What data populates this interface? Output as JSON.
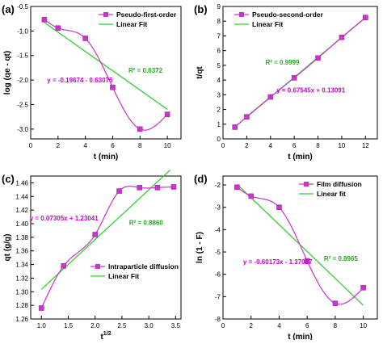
{
  "style": {
    "data_color": "#cc33cc",
    "fit_color": "#33cc33",
    "eq_color": "#cc00cc",
    "r2_color": "#22aa22",
    "axis_color": "#000000"
  },
  "chart_data": [
    {
      "panel_label": "(a)",
      "type": "line",
      "xlabel": "t (min)",
      "ylabel": "log (qe - qt)",
      "xlim": [
        0,
        11
      ],
      "ylim": [
        -3.2,
        -0.5
      ],
      "x_ticks": [
        0,
        2,
        4,
        6,
        8,
        10
      ],
      "y_ticks": [
        -3.0,
        -2.5,
        -2.0,
        -1.5,
        -1.0,
        -0.5
      ],
      "y_tick_labels": [
        "-3.0",
        "-2.5",
        "-2.0",
        "-1.5",
        "-1.0",
        "-0.5"
      ],
      "legend_position": "top-right",
      "series": [
        {
          "name": "Pseudo-first-order",
          "x": [
            1,
            2,
            4,
            6,
            8,
            10
          ],
          "y": [
            -0.77,
            -0.94,
            -1.15,
            -2.15,
            -3.0,
            -2.7
          ]
        },
        {
          "name": "Linear Fit",
          "x": [
            1,
            10
          ],
          "y": [
            -0.8275,
            -2.5981
          ]
        }
      ],
      "annotations": [
        {
          "text": "y = -0.19674 - 0.63075",
          "kind": "equation",
          "x": 3.6,
          "y": -2.05
        },
        {
          "text": "R² = 0.6372",
          "kind": "r2",
          "x": 8.4,
          "y": -1.85
        }
      ]
    },
    {
      "panel_label": "(b)",
      "type": "line",
      "xlabel": "t (min)",
      "ylabel": "t/qt",
      "xlim": [
        0,
        13
      ],
      "ylim": [
        0,
        9
      ],
      "x_ticks": [
        0,
        2,
        4,
        6,
        8,
        10,
        12
      ],
      "y_ticks": [
        0,
        1,
        2,
        3,
        4,
        5,
        6,
        7,
        8,
        9
      ],
      "y_tick_labels": [
        "0",
        "1",
        "2",
        "3",
        "4",
        "5",
        "6",
        "7",
        "8",
        "9"
      ],
      "legend_position": "top-left",
      "series": [
        {
          "name": "Pseudo-second-order",
          "x": [
            1,
            2,
            4,
            6,
            8,
            10,
            12
          ],
          "y": [
            0.8,
            1.5,
            2.85,
            4.15,
            5.5,
            6.9,
            8.25
          ]
        },
        {
          "name": "Linear Fit",
          "x": [
            1,
            12
          ],
          "y": [
            0.8064,
            8.2363
          ]
        }
      ],
      "annotations": [
        {
          "text": "R² = 0.9999",
          "kind": "r2",
          "x": 5.0,
          "y": 5.05
        },
        {
          "text": "y = 0.67545x + 0.13091",
          "kind": "equation",
          "x": 7.4,
          "y": 3.15
        }
      ]
    },
    {
      "panel_label": "(c)",
      "type": "line",
      "xlabel": "t",
      "xlabel_superscript": "1/2",
      "ylabel": "qt (g/g)",
      "xlim": [
        0.8,
        3.6
      ],
      "ylim": [
        1.26,
        1.47
      ],
      "x_ticks": [
        1.0,
        1.5,
        2.0,
        2.5,
        3.0,
        3.5
      ],
      "x_tick_labels": [
        "1.0",
        "1.5",
        "2.0",
        "2.5",
        "3.0",
        "3.5"
      ],
      "y_ticks": [
        1.26,
        1.28,
        1.3,
        1.32,
        1.34,
        1.36,
        1.38,
        1.4,
        1.42,
        1.44,
        1.46
      ],
      "y_tick_labels": [
        "1.26",
        "1.28",
        "1.30",
        "1.32",
        "1.34",
        "1.36",
        "1.38",
        "1.40",
        "1.42",
        "1.44",
        "1.46"
      ],
      "legend_position": "bottom-right",
      "series": [
        {
          "name": "Intraparticle diffusion",
          "x": [
            1.0,
            1.414,
            2.0,
            2.449,
            2.828,
            3.162,
            3.464
          ],
          "y": [
            1.276,
            1.338,
            1.384,
            1.448,
            1.453,
            1.453,
            1.454
          ]
        },
        {
          "name": "Linear Fit",
          "x": [
            1.0,
            3.4
          ],
          "y": [
            1.3035,
            1.479
          ]
        }
      ],
      "annotations": [
        {
          "text": "y = 0.07305x + 1.23041",
          "kind": "equation",
          "x": 1.42,
          "y": 1.405
        },
        {
          "text": "R² = 0.8860",
          "kind": "r2",
          "x": 2.95,
          "y": 1.398
        }
      ]
    },
    {
      "panel_label": "(d)",
      "type": "line",
      "xlabel": "t (min)",
      "ylabel": "ln (1 - F)",
      "xlim": [
        0,
        11
      ],
      "ylim": [
        -8,
        -1.6
      ],
      "x_ticks": [
        0,
        2,
        4,
        6,
        8,
        10
      ],
      "y_ticks": [
        -8,
        -7,
        -6,
        -5,
        -4,
        -3,
        -2
      ],
      "y_tick_labels": [
        "-8",
        "-7",
        "-6",
        "-5",
        "-4",
        "-3",
        "-2"
      ],
      "legend_position": "top-right",
      "series": [
        {
          "name": "Film diffusion",
          "x": [
            1,
            2,
            4,
            6,
            8,
            10
          ],
          "y": [
            -2.1,
            -2.5,
            -3.0,
            -5.4,
            -7.3,
            -6.6
          ]
        },
        {
          "name": "Linear fit",
          "x": [
            1,
            10
          ],
          "y": [
            -1.972,
            -7.387
          ]
        }
      ],
      "annotations": [
        {
          "text": "y = -0.60173x - 1.37027",
          "kind": "equation",
          "x": 3.9,
          "y": -5.55
        },
        {
          "text": "R² = 0.8965",
          "kind": "r2",
          "x": 8.4,
          "y": -5.4
        }
      ]
    }
  ]
}
